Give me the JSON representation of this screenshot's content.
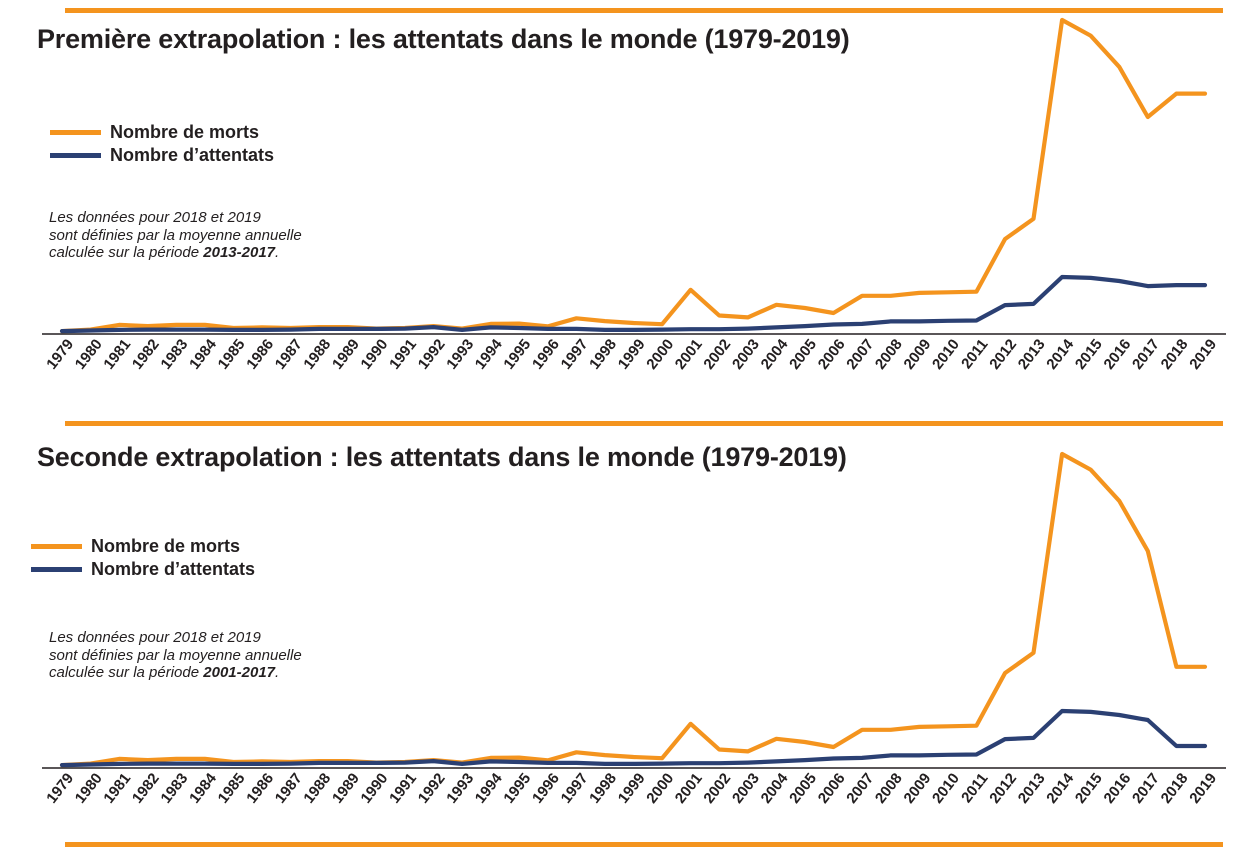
{
  "colors": {
    "accent_orange": "#F4941E",
    "deaths_line": "#F4941E",
    "attacks_line": "#2B4073",
    "text": "#231F20",
    "axis": "#231F20"
  },
  "chart_data": [
    {
      "type": "line",
      "title": "Première extrapolation : les attentats dans le monde (1979-2019)",
      "x": [
        1979,
        1980,
        1981,
        1982,
        1983,
        1984,
        1985,
        1986,
        1987,
        1988,
        1989,
        1990,
        1991,
        1992,
        1993,
        1994,
        1995,
        1996,
        1997,
        1998,
        1999,
        2000,
        2001,
        2002,
        2003,
        2004,
        2005,
        2006,
        2007,
        2008,
        2009,
        2010,
        2011,
        2012,
        2013,
        2014,
        2015,
        2016,
        2017,
        2018,
        2019
      ],
      "series": [
        {
          "name": "Nombre de morts",
          "color": "#F4941E",
          "values": [
            0.6,
            1.1,
            2.6,
            2.2,
            2.6,
            2.6,
            1.6,
            1.8,
            1.6,
            1.9,
            1.9,
            1.4,
            1.6,
            2.2,
            1.4,
            2.9,
            3.0,
            2.1,
            4.7,
            3.8,
            3.2,
            2.8,
            13.8,
            5.6,
            5.0,
            9.0,
            8.0,
            6.4,
            11.9,
            11.9,
            12.8,
            13.0,
            13.2,
            30.0,
            36.5,
            100.0,
            95.0,
            85.0,
            69.0,
            76.5,
            76.5
          ]
        },
        {
          "name": "Nombre d’attentats",
          "color": "#2B4073",
          "values": [
            0.6,
            0.8,
            1.0,
            1.1,
            1.1,
            1.1,
            1.0,
            1.0,
            1.1,
            1.3,
            1.3,
            1.3,
            1.4,
            1.9,
            1.0,
            1.8,
            1.6,
            1.3,
            1.3,
            1.0,
            1.0,
            1.1,
            1.2,
            1.2,
            1.4,
            1.8,
            2.2,
            2.7,
            2.9,
            3.7,
            3.7,
            3.9,
            4.0,
            8.9,
            9.3,
            17.9,
            17.6,
            16.6,
            15.0,
            15.3,
            15.3
          ]
        }
      ],
      "annotation": {
        "line1": "Les données pour 2018 et 2019",
        "line2": "sont définies par la moyenne annuelle",
        "line3_prefix": "calculée sur la période ",
        "period": "2013-2017",
        "suffix": "."
      },
      "legend_position": "top-left",
      "grid": false,
      "ylim": [
        0,
        105
      ],
      "y_units": "relative scale, no y-axis shown (100 = 2014 peak of deaths)"
    },
    {
      "type": "line",
      "title": "Seconde extrapolation : les attentats dans le monde (1979-2019)",
      "x": [
        1979,
        1980,
        1981,
        1982,
        1983,
        1984,
        1985,
        1986,
        1987,
        1988,
        1989,
        1990,
        1991,
        1992,
        1993,
        1994,
        1995,
        1996,
        1997,
        1998,
        1999,
        2000,
        2001,
        2002,
        2003,
        2004,
        2005,
        2006,
        2007,
        2008,
        2009,
        2010,
        2011,
        2012,
        2013,
        2014,
        2015,
        2016,
        2017,
        2018,
        2019
      ],
      "series": [
        {
          "name": "Nombre de morts",
          "color": "#F4941E",
          "values": [
            0.6,
            1.1,
            2.6,
            2.2,
            2.6,
            2.6,
            1.6,
            1.8,
            1.6,
            1.9,
            1.9,
            1.4,
            1.6,
            2.2,
            1.4,
            2.9,
            3.0,
            2.1,
            4.7,
            3.8,
            3.2,
            2.8,
            13.8,
            5.6,
            5.0,
            9.0,
            8.0,
            6.4,
            11.9,
            11.9,
            12.8,
            13.0,
            13.2,
            30.0,
            36.5,
            100.0,
            95.0,
            85.0,
            69.0,
            32.0,
            32.0
          ]
        },
        {
          "name": "Nombre d’attentats",
          "color": "#2B4073",
          "values": [
            0.6,
            0.8,
            1.0,
            1.1,
            1.1,
            1.1,
            1.0,
            1.0,
            1.1,
            1.3,
            1.3,
            1.3,
            1.4,
            1.9,
            1.0,
            1.8,
            1.6,
            1.3,
            1.3,
            1.0,
            1.0,
            1.1,
            1.2,
            1.2,
            1.4,
            1.8,
            2.2,
            2.7,
            2.9,
            3.7,
            3.7,
            3.9,
            4.0,
            8.9,
            9.3,
            17.9,
            17.6,
            16.6,
            15.0,
            6.7,
            6.7
          ]
        }
      ],
      "annotation": {
        "line1": "Les données pour 2018 et 2019",
        "line2": "sont définies par la moyenne annuelle",
        "line3_prefix": "calculée sur la période ",
        "period": "2001-2017",
        "suffix": "."
      },
      "legend_position": "top-left",
      "grid": false,
      "ylim": [
        0,
        105
      ],
      "y_units": "relative scale, no y-axis shown (100 = 2014 peak of deaths)"
    }
  ]
}
